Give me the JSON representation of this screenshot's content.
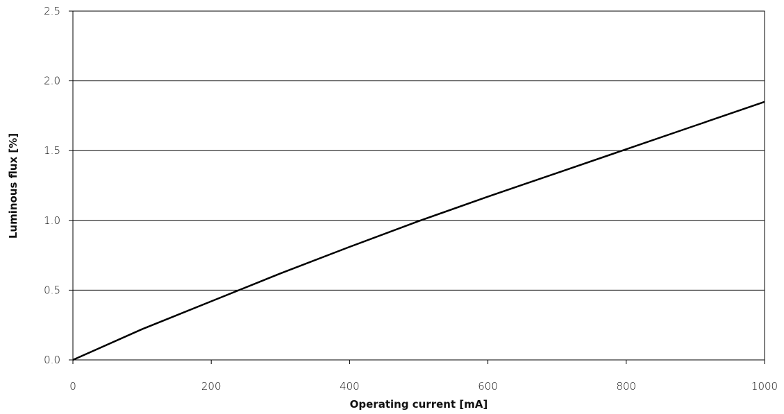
{
  "chart_data": {
    "type": "line",
    "title": "",
    "xlabel": "Operating current [mA]",
    "ylabel": "Luminous flux [%]",
    "xlim": [
      0,
      1000
    ],
    "ylim": [
      0,
      2.5
    ],
    "x_ticks": [
      0,
      200,
      400,
      600,
      800,
      1000
    ],
    "x_tick_labels": [
      "0",
      "200",
      "400",
      "600",
      "800",
      "1000"
    ],
    "y_ticks": [
      0,
      0.5,
      1.0,
      1.5,
      2.0,
      2.5
    ],
    "y_tick_labels": [
      "0.0",
      "0.5",
      "1.0",
      "1.5",
      "2.0",
      "2.5"
    ],
    "grid": "horizontal",
    "legend": "none",
    "series": [
      {
        "color": "#000000",
        "x": [
          0,
          100,
          200,
          300,
          400,
          500,
          600,
          700,
          800,
          900,
          1000
        ],
        "y": [
          0.0,
          0.22,
          0.42,
          0.62,
          0.81,
          0.995,
          1.17,
          1.34,
          1.51,
          1.68,
          1.85
        ]
      }
    ]
  }
}
